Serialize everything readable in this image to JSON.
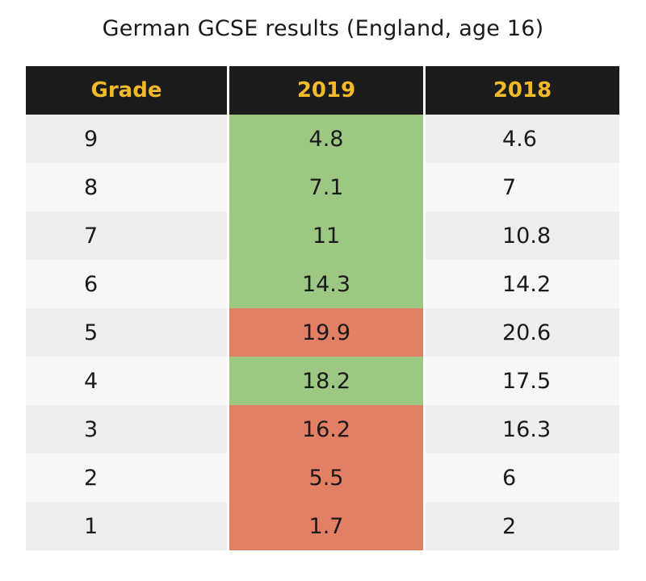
{
  "chart_data": {
    "type": "table",
    "title": "German GCSE results (England, age 16)",
    "columns": [
      "Grade",
      "2019",
      "2018"
    ],
    "rows": [
      {
        "grade": "9",
        "y2019": "4.8",
        "y2018": "4.6",
        "change": "up"
      },
      {
        "grade": "8",
        "y2019": "7.1",
        "y2018": "7",
        "change": "up"
      },
      {
        "grade": "7",
        "y2019": "11",
        "y2018": "10.8",
        "change": "up"
      },
      {
        "grade": "6",
        "y2019": "14.3",
        "y2018": "14.2",
        "change": "up"
      },
      {
        "grade": "5",
        "y2019": "19.9",
        "y2018": "20.6",
        "change": "down"
      },
      {
        "grade": "4",
        "y2019": "18.2",
        "y2018": "17.5",
        "change": "up"
      },
      {
        "grade": "3",
        "y2019": "16.2",
        "y2018": "16.3",
        "change": "down"
      },
      {
        "grade": "2",
        "y2019": "5.5",
        "y2018": "6",
        "change": "down"
      },
      {
        "grade": "1",
        "y2019": "1.7",
        "y2018": "2",
        "change": "down"
      }
    ],
    "colors": {
      "header_bg": "#1c1c1c",
      "header_text": "#f2b928",
      "increase": "#9dc883",
      "decrease": "#e27f64"
    }
  }
}
